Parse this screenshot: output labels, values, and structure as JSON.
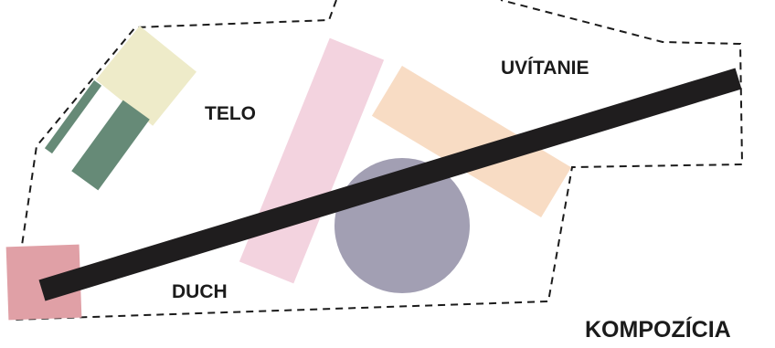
{
  "labels": {
    "telo": "TELO",
    "uvitanie": "UVÍTANIE",
    "duch": "DUCH",
    "kompozicia": "KOMPOZÍCIA"
  },
  "colors": {
    "background": "#ffffff",
    "outline": "#1b1b1b",
    "yellow_block": "#eeebc9",
    "green_block": "#668a77",
    "pink_bar": "#f3d3df",
    "peach_bar": "#f8dcc4",
    "circle": "#a29fb3",
    "red_square": "#e0a0a6",
    "black_bar": "#1f1d1e",
    "text": "#1b1b1b"
  }
}
